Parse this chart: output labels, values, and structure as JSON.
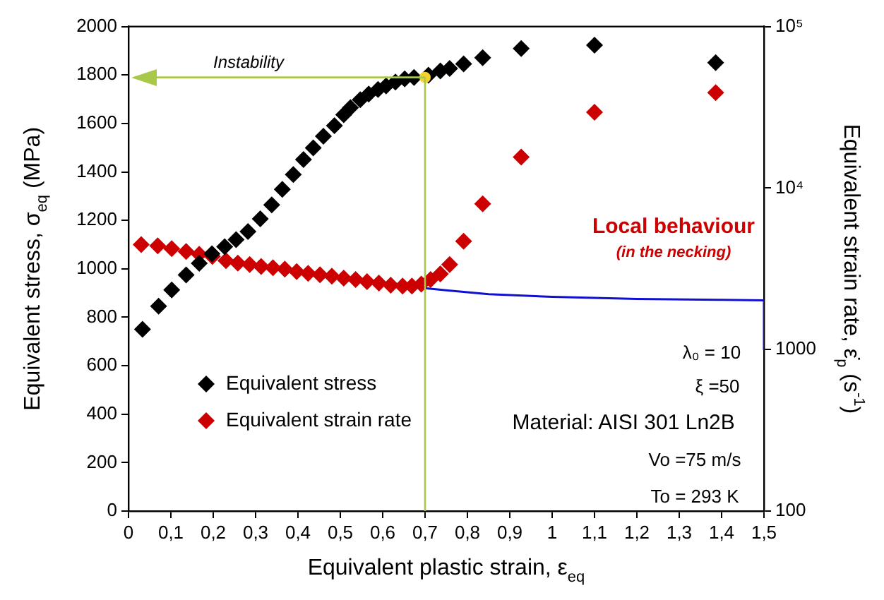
{
  "chart_data": {
    "type": "scatter",
    "xlabel": "Equivalent plastic strain, ε$_{eq}$",
    "ylabel": "Equivalent stress, σ$_{eq}$ (MPa)",
    "y2label": "Equivalent strain rate, ε̇$_{p}$ (s$^{-1}$)",
    "xlim": [
      0,
      1.5
    ],
    "xticks": [
      0,
      {
        "value": 0.1,
        "label": "0,1"
      },
      {
        "value": 0.2,
        "label": "0,2"
      },
      {
        "value": 0.3,
        "label": "0,3"
      },
      {
        "value": 0.4,
        "label": "0,4"
      },
      {
        "value": 0.5,
        "label": "0,5"
      },
      {
        "value": 0.6,
        "label": "0,6"
      },
      {
        "value": 0.7,
        "label": "0,7"
      },
      {
        "value": 0.8,
        "label": "0,8"
      },
      {
        "value": 0.9,
        "label": "0,9"
      },
      1,
      {
        "value": 1.1,
        "label": "1,1"
      },
      {
        "value": 1.2,
        "label": "1,2"
      },
      {
        "value": 1.3,
        "label": "1,3"
      },
      {
        "value": 1.4,
        "label": "1,4"
      },
      {
        "value": 1.5,
        "label": "1,5"
      }
    ],
    "ylim": [
      0,
      2000
    ],
    "yticks": [
      0,
      200,
      400,
      600,
      800,
      1000,
      1200,
      1400,
      1600,
      1800,
      2000
    ],
    "y2lim": [
      100,
      100000
    ],
    "y2ticks": [
      100,
      1000,
      {
        "value": 10000,
        "label": "10⁴"
      },
      {
        "value": 100000,
        "label": "10⁵"
      }
    ],
    "log": "y2",
    "grid": false,
    "legend": "bottom left",
    "marker": "diamond",
    "series": [
      {
        "type": "line",
        "marker": "none",
        "color": "#1010d0",
        "axis": "y2",
        "x": [
          0.7,
          0.75,
          0.85,
          1.0,
          1.2,
          1.4,
          1.5,
          1.5
        ],
        "values": [
          2400,
          2330,
          2200,
          2120,
          2060,
          2030,
          2015,
          1000
        ]
      },
      {
        "name": "Equivalent stress",
        "color": "#000000",
        "x": [
          0.033,
          0.071,
          0.102,
          0.136,
          0.167,
          0.197,
          0.227,
          0.254,
          0.282,
          0.311,
          0.338,
          0.363,
          0.389,
          0.413,
          0.436,
          0.46,
          0.486,
          0.508,
          0.524,
          0.547,
          0.567,
          0.589,
          0.608,
          0.63,
          0.652,
          0.674,
          0.708,
          0.736,
          0.758,
          0.791,
          0.836,
          0.927,
          1.1,
          1.386
        ],
        "values": [
          750,
          846,
          913,
          975,
          1023,
          1062,
          1091,
          1120,
          1154,
          1206,
          1264,
          1328,
          1389,
          1451,
          1499,
          1547,
          1591,
          1636,
          1665,
          1698,
          1721,
          1740,
          1755,
          1771,
          1784,
          1790,
          1799,
          1817,
          1827,
          1846,
          1871,
          1909,
          1923,
          1851
        ]
      },
      {
        "name": "Equivalent strain rate",
        "color": "#cc0000",
        "axis": "y2",
        "x": [
          0.03,
          0.069,
          0.102,
          0.136,
          0.167,
          0.198,
          0.23,
          0.258,
          0.286,
          0.313,
          0.341,
          0.369,
          0.397,
          0.424,
          0.452,
          0.48,
          0.508,
          0.536,
          0.563,
          0.591,
          0.619,
          0.647,
          0.669,
          0.691,
          0.713,
          0.736,
          0.758,
          0.791,
          0.836,
          0.927,
          1.1,
          1.386
        ],
        "values": [
          4470,
          4385,
          4210,
          4045,
          3890,
          3770,
          3550,
          3430,
          3360,
          3270,
          3210,
          3150,
          3040,
          2960,
          2905,
          2845,
          2770,
          2715,
          2630,
          2580,
          2505,
          2475,
          2475,
          2540,
          2715,
          2940,
          3360,
          4690,
          7980,
          15560,
          29450,
          38990
        ]
      },
      {
        "type": "scatter",
        "marker": "circle",
        "color": "#f5d130",
        "x": [
          0.7
        ],
        "values": [
          1790
        ]
      }
    ],
    "ref_lines": [
      {
        "axis": "x",
        "value": 0.7,
        "color": "#a8c84a"
      },
      {
        "axis": "y",
        "value": 1790,
        "label": "Instability",
        "color": "#a8c84a"
      }
    ],
    "annotations": [
      "Local behaviour",
      "(in the necking)",
      "λ₀ = 10",
      "ξ =50",
      "Material: AISI 301 Ln2B",
      "Vo =75 m/s",
      "To = 293 K"
    ]
  }
}
